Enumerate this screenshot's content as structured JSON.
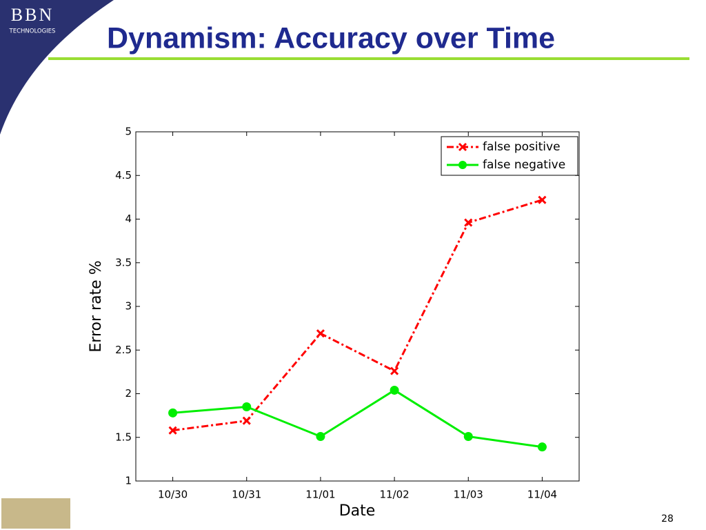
{
  "slide": {
    "title": "Dynamism: Accuracy over Time",
    "page_number": "28",
    "logo": "BBN",
    "logo_subtitle": "TECHNOLOGIES"
  },
  "chart_data": {
    "type": "line",
    "xlabel": "Date",
    "ylabel": "Error rate %",
    "categories": [
      "10/30",
      "10/31",
      "11/01",
      "11/02",
      "11/03",
      "11/04"
    ],
    "series": [
      {
        "name": "false positive",
        "color": "#ff0000",
        "values": [
          1.58,
          1.69,
          2.69,
          2.26,
          3.96,
          4.22
        ]
      },
      {
        "name": "false negative",
        "color": "#00ee00",
        "values": [
          1.78,
          1.85,
          1.51,
          2.04,
          1.51,
          1.39
        ]
      }
    ],
    "ylim": [
      1,
      5
    ],
    "yticks": [
      1,
      1.5,
      2,
      2.5,
      3,
      3.5,
      4,
      4.5,
      5
    ],
    "grid": false,
    "legend": "upper right"
  }
}
